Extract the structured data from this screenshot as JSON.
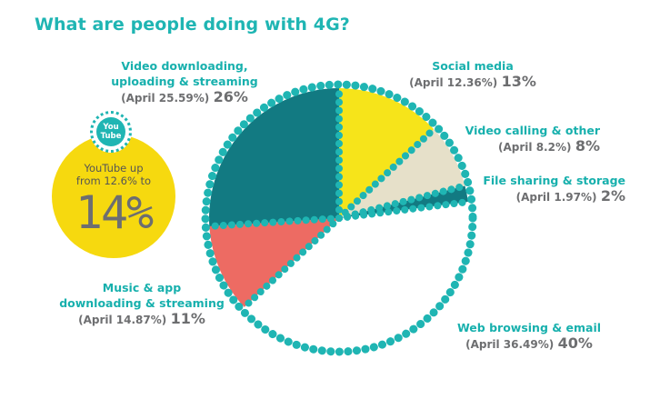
{
  "title": "What are people doing with 4G?",
  "colors": {
    "teal_dark": "#127a82",
    "teal": "#1fb5b3",
    "yellow": "#f6e41a",
    "beige": "#e6e0c9",
    "coral": "#ed6b63",
    "white": "#ffffff",
    "gray_text": "#6d6e70",
    "yt_yellow": "#f6d90f"
  },
  "chart_data": {
    "type": "pie",
    "title": "What are people doing with 4G?",
    "slices": [
      {
        "label_lines": [
          "Social media"
        ],
        "april": "(April 12.36%)",
        "pct": "13%",
        "value": 13,
        "color": "#f6e41a"
      },
      {
        "label_lines": [
          "Video calling & other"
        ],
        "april": "(April 8.2%)",
        "pct": "8%",
        "value": 8,
        "color": "#e6e0c9"
      },
      {
        "label_lines": [
          "File sharing & storage"
        ],
        "april": "(April 1.97%)",
        "pct": "2%",
        "value": 2,
        "color": "#127a82"
      },
      {
        "label_lines": [
          "Web browsing & email"
        ],
        "april": "(April 36.49%)",
        "pct": "40%",
        "value": 40,
        "color": "#ffffff"
      },
      {
        "label_lines": [
          "Music & app",
          "downloading & streaming"
        ],
        "april": "(April 14.87%)",
        "pct": "11%",
        "value": 11,
        "color": "#ed6b63"
      },
      {
        "label_lines": [
          "Video downloading,",
          "uploading & streaming"
        ],
        "april": "(April 25.59%)",
        "pct": "26%",
        "value": 26,
        "color": "#127a82"
      }
    ]
  },
  "youtube": {
    "badge_line1": "You",
    "badge_line2": "Tube",
    "text_line1": "YouTube up",
    "text_line2": "from 12.6% to",
    "big": "14%"
  }
}
